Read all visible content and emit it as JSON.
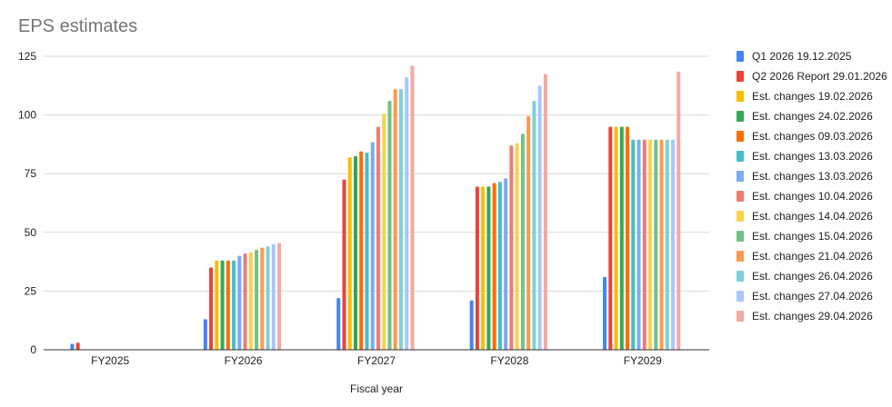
{
  "chart_data": {
    "type": "bar",
    "title": "EPS estimates",
    "xlabel": "Fiscal year",
    "ylabel": "",
    "ylim": [
      0,
      125
    ],
    "yticks": [
      0,
      25,
      50,
      75,
      100,
      125
    ],
    "grid": true,
    "legend_position": "right",
    "categories": [
      "FY2025",
      "FY2026",
      "FY2027",
      "FY2028",
      "FY2029"
    ],
    "series": [
      {
        "name": "Q1 2026 19.12.2025",
        "color": "#4285f4",
        "values": [
          2.5,
          13,
          22,
          21,
          31
        ]
      },
      {
        "name": "Q2 2026 Report 29.01.2026",
        "color": "#ea4335",
        "values": [
          3,
          35,
          72.5,
          69.5,
          95
        ]
      },
      {
        "name": "Est. changes 19.02.2026",
        "color": "#fbbc04",
        "values": [
          null,
          38,
          82,
          69.5,
          95
        ]
      },
      {
        "name": "Est. changes 24.02.2026",
        "color": "#34a853",
        "values": [
          null,
          38,
          82.5,
          69.5,
          95
        ]
      },
      {
        "name": "Est. changes 09.03.2026",
        "color": "#ff6d01",
        "values": [
          null,
          38,
          84.5,
          71,
          95
        ]
      },
      {
        "name": "Est. changes 13.03.2026",
        "color": "#46bdc6",
        "values": [
          null,
          38,
          84,
          71.5,
          89.5
        ]
      },
      {
        "name": "Est. changes 13.03.2026",
        "color": "#7baaf7",
        "values": [
          null,
          40,
          88.5,
          73,
          89.5
        ]
      },
      {
        "name": "Est. changes 10.04.2026",
        "color": "#f07b72",
        "values": [
          null,
          41,
          95,
          87,
          89.5
        ]
      },
      {
        "name": "Est. changes 14.04.2026",
        "color": "#fcd04f",
        "values": [
          null,
          41.5,
          100.5,
          88,
          89.5
        ]
      },
      {
        "name": "Est. changes 15.04.2026",
        "color": "#71c287",
        "values": [
          null,
          42.5,
          106,
          92,
          89.5
        ]
      },
      {
        "name": "Est. changes 21.04.2026",
        "color": "#ff994d",
        "values": [
          null,
          43.5,
          111,
          99.5,
          89.5
        ]
      },
      {
        "name": "Est. changes 26.04.2026",
        "color": "#7ed1d7",
        "values": [
          null,
          44,
          111,
          106,
          89.5
        ]
      },
      {
        "name": "Est. changes 27.04.2026",
        "color": "#a8c7fa",
        "values": [
          null,
          45,
          116,
          112.5,
          89.5
        ]
      },
      {
        "name": "Est. changes 29.04.2026",
        "color": "#f4a9a2",
        "values": [
          null,
          45.5,
          121,
          117.5,
          118.5
        ]
      }
    ]
  }
}
